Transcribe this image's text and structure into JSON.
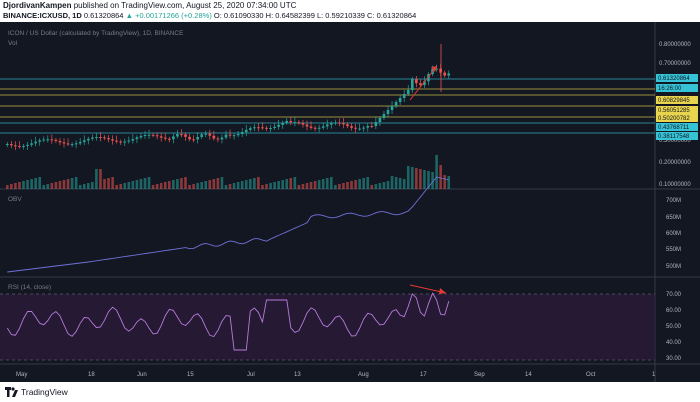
{
  "header": {
    "author": "DjordivanKampen",
    "published_text": "published on TradingView.com, August 25, 2020 07:34:00 UTC",
    "symbol": "BINANCE:ICXUSD, 1D",
    "ohlc": "0.61320864",
    "change": "▲ +0.00171266 (+0.28%)",
    "o": "O: 0.61090330",
    "h": "H: 0.64582399",
    "l": "L: 0.59210339",
    "c": "C: 0.61320864"
  },
  "legends": {
    "main": "ICON / US Dollar (calculated by TradingView), 1D, BINANCE",
    "vol": "Vol",
    "obv": "OBV",
    "rsi": "RSI (14, close)"
  },
  "price_axis": {
    "ticks": [
      "0.80000000",
      "0.70000000",
      "0.30000000",
      "0.20000000",
      "0.10000000"
    ],
    "labels": [
      {
        "text": "0.61320864",
        "style": "cyan"
      },
      {
        "text": "16:26:00",
        "style": "cyan"
      },
      {
        "text": "0.60829845",
        "style": "yellow"
      },
      {
        "text": "0.56051285",
        "style": "yellow"
      },
      {
        "text": "0.50200782",
        "style": "yellow"
      },
      {
        "text": "0.43768711",
        "style": "cyan"
      },
      {
        "text": "0.38117548",
        "style": "cyan"
      }
    ]
  },
  "obv_axis": {
    "ticks": [
      "700M",
      "650M",
      "600M",
      "550M",
      "500M"
    ]
  },
  "rsi_axis": {
    "ticks": [
      "70.00",
      "60.00",
      "50.00",
      "40.00",
      "30.00"
    ]
  },
  "time_axis": {
    "ticks": [
      "May",
      "18",
      "Jun",
      "15",
      "Jul",
      "13",
      "Aug",
      "17",
      "Sep",
      "14",
      "Oct",
      "1"
    ]
  },
  "footer": {
    "brand": "TradingView"
  },
  "colors": {
    "up": "#26a69a",
    "down": "#ef5350",
    "background": "#131722",
    "obv": "#6f72d8",
    "rsi": "#b67bd8",
    "hline_yellow": "#e8d44d",
    "hline_cyan": "#36c3d6",
    "arrow": "#e53935"
  }
}
